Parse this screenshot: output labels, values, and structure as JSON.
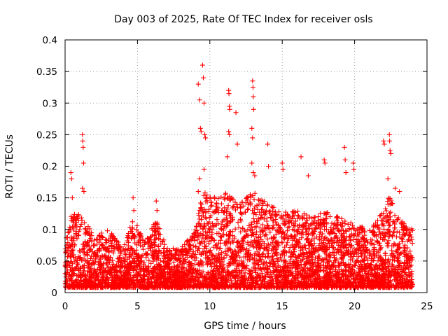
{
  "chart_data": {
    "type": "scatter",
    "title": "Day 003 of 2025, Rate Of TEC Index for receiver osls",
    "xlabel": "GPS time / hours",
    "ylabel": "ROTI / TECUs",
    "xlim": [
      0,
      25
    ],
    "ylim": [
      0,
      0.4
    ],
    "x_ticks": [
      0,
      5,
      10,
      15,
      20,
      25
    ],
    "x_tick_labels": [
      "0",
      "5",
      "10",
      "15",
      "20",
      "25"
    ],
    "y_ticks": [
      0,
      0.05,
      0.1,
      0.15,
      0.2,
      0.25,
      0.3,
      0.35,
      0.4
    ],
    "y_tick_labels": [
      "0",
      "0.05",
      "0.1",
      "0.15",
      "0.2",
      "0.25",
      "0.3",
      "0.35",
      "0.4"
    ],
    "grid": true,
    "marker": "+",
    "marker_color": "#ff0000",
    "series": [
      {
        "name": "ROTI",
        "note": "dense cloud of red '+' markers spanning 0-24 h with baseline ~0.01-0.08 TECU/min; notable peaks listed in points",
        "baseline_envelope": [
          {
            "x": 0,
            "ymax": 0.08
          },
          {
            "x": 0.5,
            "ymax": 0.13
          },
          {
            "x": 1.2,
            "ymax": 0.12
          },
          {
            "x": 2,
            "ymax": 0.09
          },
          {
            "x": 3,
            "ymax": 0.1
          },
          {
            "x": 4,
            "ymax": 0.07
          },
          {
            "x": 4.7,
            "ymax": 0.12
          },
          {
            "x": 5.5,
            "ymax": 0.08
          },
          {
            "x": 6.3,
            "ymax": 0.12
          },
          {
            "x": 7,
            "ymax": 0.07
          },
          {
            "x": 8,
            "ymax": 0.07
          },
          {
            "x": 9,
            "ymax": 0.1
          },
          {
            "x": 9.5,
            "ymax": 0.16
          },
          {
            "x": 10.5,
            "ymax": 0.15
          },
          {
            "x": 11.2,
            "ymax": 0.16
          },
          {
            "x": 12,
            "ymax": 0.14
          },
          {
            "x": 13,
            "ymax": 0.16
          },
          {
            "x": 14,
            "ymax": 0.14
          },
          {
            "x": 15,
            "ymax": 0.13
          },
          {
            "x": 16,
            "ymax": 0.13
          },
          {
            "x": 17,
            "ymax": 0.12
          },
          {
            "x": 18,
            "ymax": 0.13
          },
          {
            "x": 19,
            "ymax": 0.12
          },
          {
            "x": 20,
            "ymax": 0.11
          },
          {
            "x": 21,
            "ymax": 0.1
          },
          {
            "x": 22,
            "ymax": 0.13
          },
          {
            "x": 22.5,
            "ymax": 0.16
          },
          {
            "x": 23,
            "ymax": 0.12
          },
          {
            "x": 24,
            "ymax": 0.1
          }
        ],
        "points": [
          {
            "x": 0.4,
            "y": 0.19
          },
          {
            "x": 0.45,
            "y": 0.18
          },
          {
            "x": 0.5,
            "y": 0.15
          },
          {
            "x": 1.2,
            "y": 0.25
          },
          {
            "x": 1.22,
            "y": 0.24
          },
          {
            "x": 1.25,
            "y": 0.23
          },
          {
            "x": 1.28,
            "y": 0.205
          },
          {
            "x": 1.2,
            "y": 0.165
          },
          {
            "x": 1.3,
            "y": 0.16
          },
          {
            "x": 4.7,
            "y": 0.15
          },
          {
            "x": 4.75,
            "y": 0.13
          },
          {
            "x": 6.3,
            "y": 0.145
          },
          {
            "x": 6.35,
            "y": 0.13
          },
          {
            "x": 9.2,
            "y": 0.33
          },
          {
            "x": 9.3,
            "y": 0.305
          },
          {
            "x": 9.35,
            "y": 0.26
          },
          {
            "x": 9.4,
            "y": 0.255
          },
          {
            "x": 9.5,
            "y": 0.36
          },
          {
            "x": 9.55,
            "y": 0.34
          },
          {
            "x": 9.6,
            "y": 0.3
          },
          {
            "x": 9.65,
            "y": 0.25
          },
          {
            "x": 9.7,
            "y": 0.245
          },
          {
            "x": 9.6,
            "y": 0.195
          },
          {
            "x": 9.3,
            "y": 0.18
          },
          {
            "x": 9.2,
            "y": 0.16
          },
          {
            "x": 11.3,
            "y": 0.32
          },
          {
            "x": 11.32,
            "y": 0.315
          },
          {
            "x": 11.35,
            "y": 0.295
          },
          {
            "x": 11.38,
            "y": 0.29
          },
          {
            "x": 11.3,
            "y": 0.255
          },
          {
            "x": 11.35,
            "y": 0.25
          },
          {
            "x": 11.2,
            "y": 0.215
          },
          {
            "x": 11.8,
            "y": 0.285
          },
          {
            "x": 11.9,
            "y": 0.235
          },
          {
            "x": 12.95,
            "y": 0.335
          },
          {
            "x": 12.98,
            "y": 0.325
          },
          {
            "x": 13.0,
            "y": 0.31
          },
          {
            "x": 13.02,
            "y": 0.29
          },
          {
            "x": 12.9,
            "y": 0.26
          },
          {
            "x": 12.95,
            "y": 0.245
          },
          {
            "x": 12.9,
            "y": 0.205
          },
          {
            "x": 13.0,
            "y": 0.19
          },
          {
            "x": 13.1,
            "y": 0.185
          },
          {
            "x": 14.0,
            "y": 0.235
          },
          {
            "x": 14.05,
            "y": 0.2
          },
          {
            "x": 15.0,
            "y": 0.205
          },
          {
            "x": 15.05,
            "y": 0.195
          },
          {
            "x": 16.3,
            "y": 0.215
          },
          {
            "x": 16.8,
            "y": 0.185
          },
          {
            "x": 17.9,
            "y": 0.21
          },
          {
            "x": 17.95,
            "y": 0.205
          },
          {
            "x": 19.3,
            "y": 0.23
          },
          {
            "x": 19.35,
            "y": 0.21
          },
          {
            "x": 19.4,
            "y": 0.19
          },
          {
            "x": 19.9,
            "y": 0.205
          },
          {
            "x": 19.95,
            "y": 0.195
          },
          {
            "x": 22.0,
            "y": 0.24
          },
          {
            "x": 22.05,
            "y": 0.235
          },
          {
            "x": 22.4,
            "y": 0.25
          },
          {
            "x": 22.42,
            "y": 0.24
          },
          {
            "x": 22.45,
            "y": 0.225
          },
          {
            "x": 22.5,
            "y": 0.22
          },
          {
            "x": 22.3,
            "y": 0.18
          },
          {
            "x": 22.8,
            "y": 0.165
          },
          {
            "x": 23.1,
            "y": 0.16
          }
        ]
      }
    ]
  }
}
